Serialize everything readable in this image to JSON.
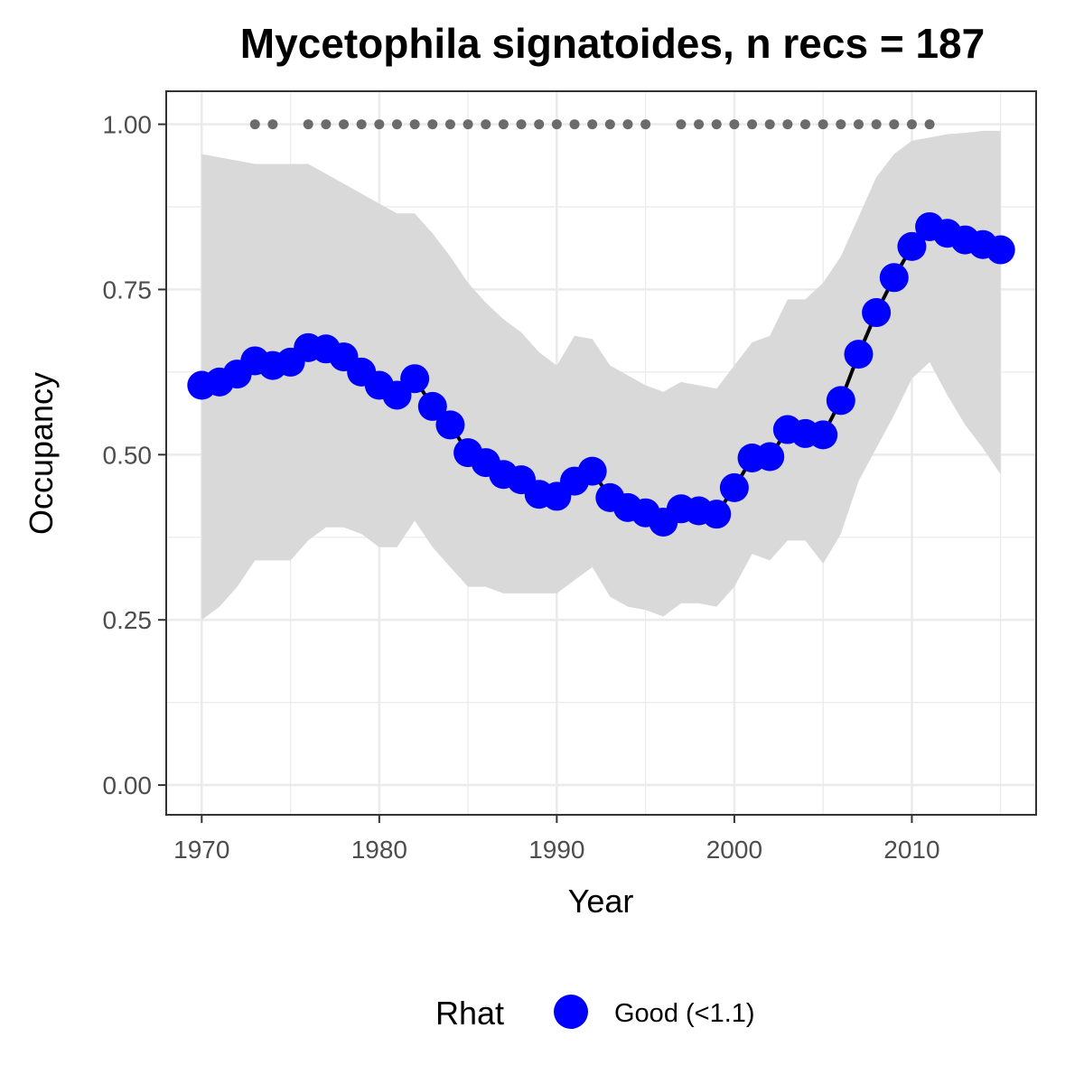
{
  "chart_data": {
    "type": "line",
    "title": "Mycetophila signatoides, n recs = 187",
    "xlabel": "Year",
    "ylabel": "Occupancy",
    "xlim": [
      1968,
      2017
    ],
    "ylim": [
      -0.045,
      1.05
    ],
    "x_ticks": [
      "1970",
      "1980",
      "1990",
      "2000",
      "2010"
    ],
    "y_ticks": [
      "0.00",
      "0.25",
      "0.50",
      "0.75",
      "1.00"
    ],
    "grid": true,
    "colors": {
      "point": "#0000ff",
      "line": "#000000",
      "ribbon": "#d9d9d9",
      "record_marker": "#6b6b6b",
      "grid": "#ebebeb",
      "panel_border": "#333333"
    },
    "series": [
      {
        "x": [
          1970,
          1971,
          1972,
          1973,
          1974,
          1975,
          1976,
          1977,
          1978,
          1979,
          1980,
          1981,
          1982,
          1983,
          1984,
          1985,
          1986,
          1987,
          1988,
          1989,
          1990,
          1991,
          1992,
          1993,
          1994,
          1995,
          1996,
          1997,
          1998,
          1999,
          2000,
          2001,
          2002,
          2003,
          2004,
          2005,
          2006,
          2007,
          2008,
          2009,
          2010,
          2011,
          2012,
          2013,
          2014,
          2015
        ],
        "y": [
          0.605,
          0.61,
          0.622,
          0.642,
          0.635,
          0.64,
          0.662,
          0.66,
          0.648,
          0.625,
          0.605,
          0.59,
          0.615,
          0.573,
          0.545,
          0.503,
          0.488,
          0.47,
          0.462,
          0.44,
          0.437,
          0.46,
          0.475,
          0.435,
          0.42,
          0.412,
          0.398,
          0.418,
          0.415,
          0.41,
          0.45,
          0.495,
          0.497,
          0.538,
          0.532,
          0.53,
          0.582,
          0.652,
          0.715,
          0.768,
          0.815,
          0.845,
          0.835,
          0.825,
          0.818,
          0.81
        ],
        "lower": [
          0.25,
          0.27,
          0.3,
          0.34,
          0.34,
          0.34,
          0.37,
          0.39,
          0.39,
          0.38,
          0.36,
          0.36,
          0.4,
          0.36,
          0.33,
          0.3,
          0.3,
          0.29,
          0.29,
          0.29,
          0.29,
          0.31,
          0.33,
          0.285,
          0.27,
          0.265,
          0.255,
          0.275,
          0.275,
          0.27,
          0.3,
          0.35,
          0.34,
          0.37,
          0.37,
          0.335,
          0.38,
          0.46,
          0.51,
          0.56,
          0.615,
          0.64,
          0.59,
          0.545,
          0.51,
          0.47
        ],
        "upper": [
          0.955,
          0.95,
          0.945,
          0.94,
          0.94,
          0.94,
          0.94,
          0.925,
          0.91,
          0.895,
          0.88,
          0.865,
          0.865,
          0.835,
          0.8,
          0.76,
          0.73,
          0.705,
          0.685,
          0.655,
          0.635,
          0.68,
          0.675,
          0.635,
          0.62,
          0.605,
          0.595,
          0.61,
          0.605,
          0.6,
          0.635,
          0.67,
          0.68,
          0.735,
          0.735,
          0.76,
          0.8,
          0.86,
          0.92,
          0.955,
          0.975,
          0.98,
          0.985,
          0.987,
          0.99,
          0.99
        ]
      }
    ],
    "record_years": [
      1973,
      1974,
      1976,
      1977,
      1978,
      1979,
      1980,
      1981,
      1982,
      1983,
      1984,
      1985,
      1986,
      1987,
      1988,
      1989,
      1990,
      1991,
      1992,
      1993,
      1994,
      1995,
      1997,
      1998,
      1999,
      2000,
      2001,
      2002,
      2003,
      2004,
      2005,
      2006,
      2007,
      2008,
      2009,
      2010,
      2011
    ],
    "record_y": 1.0,
    "legend": {
      "title": "Rhat",
      "label": "Good (<1.1)",
      "position": "bottom"
    }
  }
}
